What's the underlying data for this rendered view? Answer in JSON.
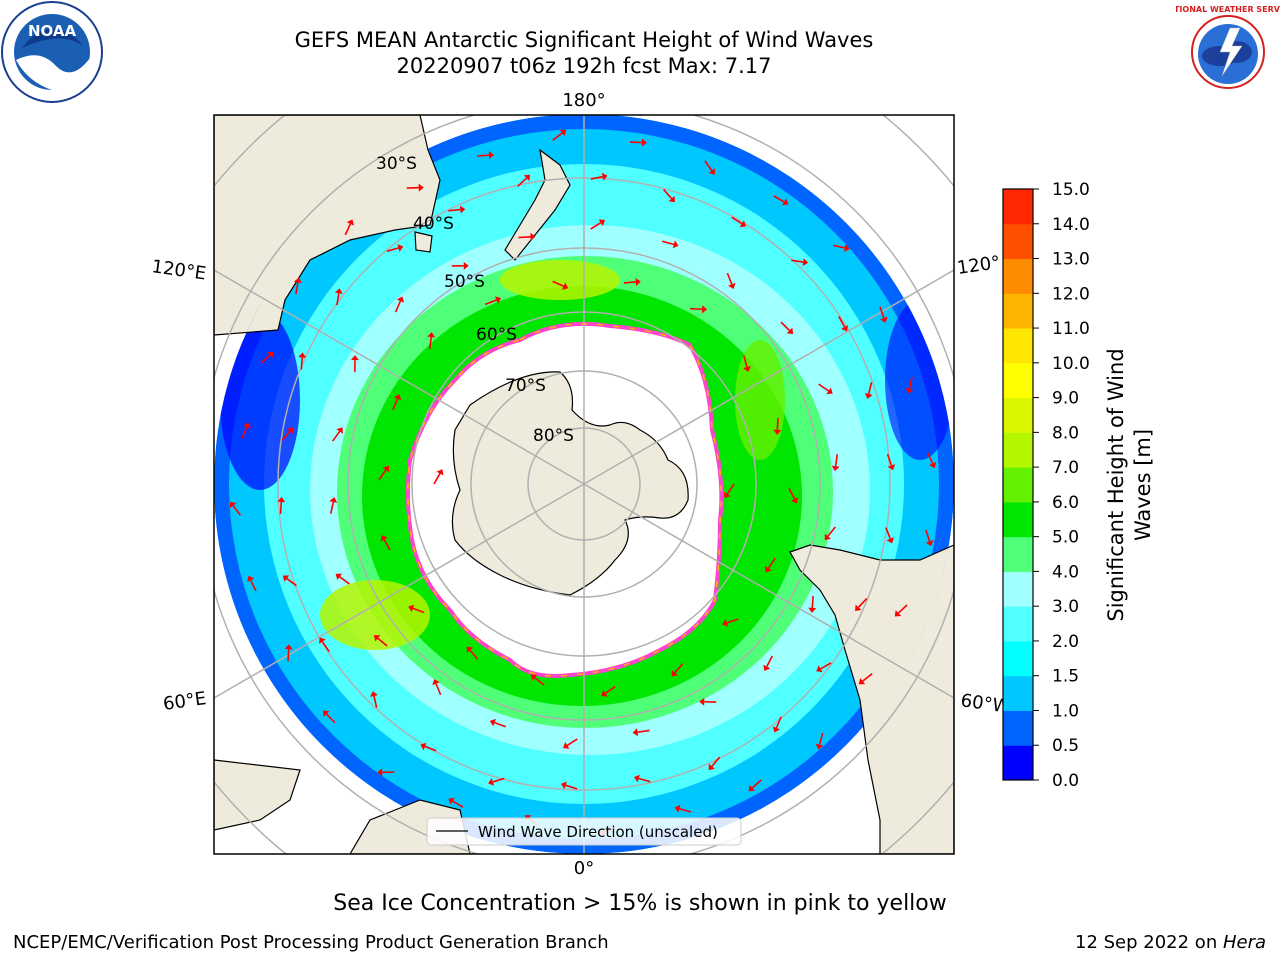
{
  "title": {
    "line1": "GEFS MEAN Antarctic Significant Height of Wind Waves",
    "line2": "20220907 t06z 192h fcst   Max: 7.17"
  },
  "logos": {
    "left": {
      "icon": "noaa-logo",
      "text": "NOAA"
    },
    "right": {
      "icon": "nws-logo",
      "text": "NATIONAL WEATHER SERVICE"
    }
  },
  "map": {
    "projection": "south-polar-stereographic",
    "longitude_labels": {
      "top": "180°",
      "bottom": "0°",
      "upper_left": "120°E",
      "lower_left": "60°E",
      "upper_right": "120°",
      "lower_right": "60°W"
    },
    "latitude_labels": [
      "30°S",
      "40°S",
      "50°S",
      "60°S",
      "70°S",
      "80°S"
    ],
    "legend_label": "Wind Wave Direction (unscaled)",
    "colors": {
      "land": "#efebdc",
      "ice_edge": "#ff44cc",
      "arrows": "#ff0000",
      "grid": "#b0b0b0"
    }
  },
  "colorbar": {
    "label_line1": "Significant Height of Wind",
    "label_line2": "Waves [m]",
    "ticks": [
      "0.0",
      "0.5",
      "1.0",
      "1.5",
      "2.0",
      "3.0",
      "4.0",
      "5.0",
      "6.0",
      "7.0",
      "8.0",
      "9.0",
      "10.0",
      "11.0",
      "12.0",
      "13.0",
      "14.0",
      "15.0"
    ],
    "colors": [
      "#0000ff",
      "#0064ff",
      "#00c8ff",
      "#00ffff",
      "#50ffff",
      "#a0ffff",
      "#50ff78",
      "#00e600",
      "#64f000",
      "#b4f500",
      "#dcf500",
      "#ffff00",
      "#ffe600",
      "#ffb400",
      "#ff8c00",
      "#ff5000",
      "#ff2800"
    ]
  },
  "footer": {
    "caption": "Sea Ice Concentration > 15% is shown in pink to yellow",
    "credit": "NCEP/EMC/Verification Post Processing Product Generation Branch",
    "date": "12 Sep 2022 on ",
    "host": "Hera"
  }
}
